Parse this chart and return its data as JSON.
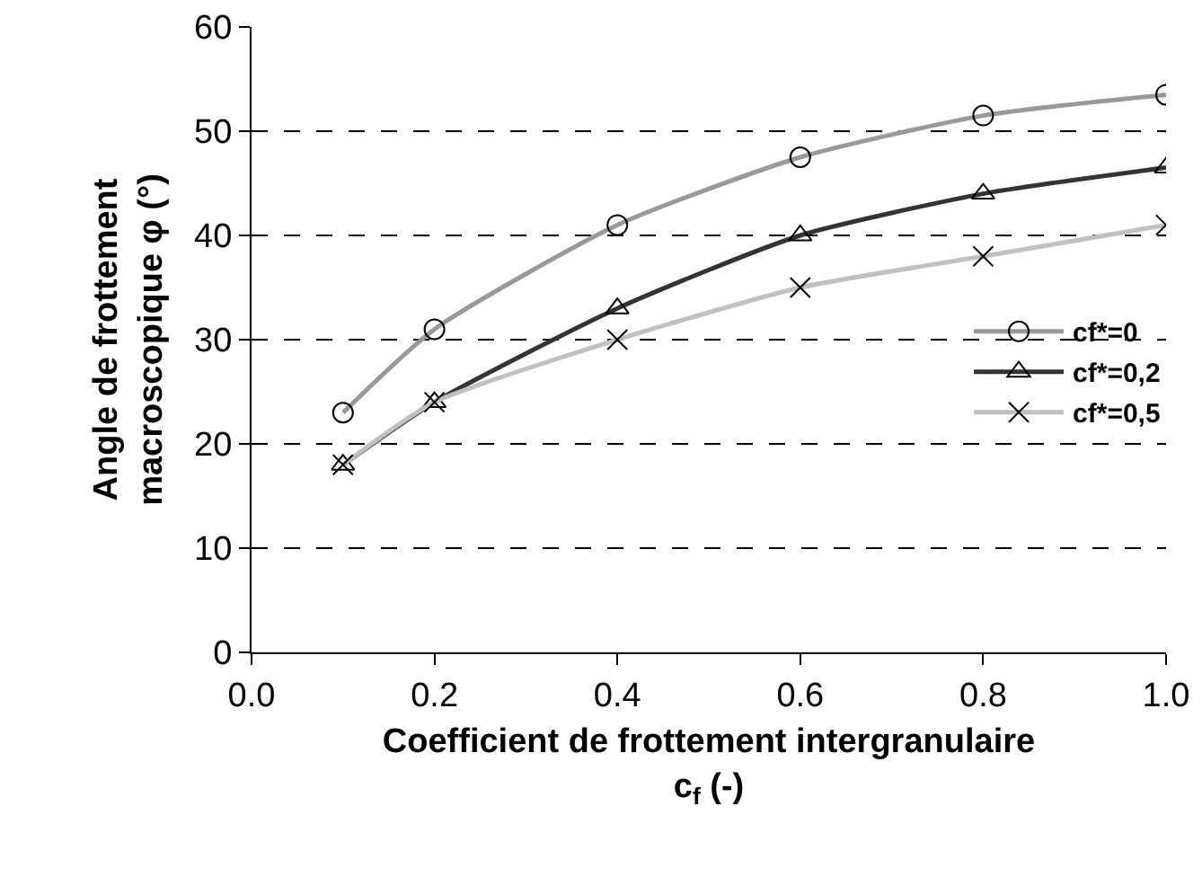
{
  "chart_data": {
    "type": "line",
    "xlabel": "Coefficient de frottement intergranulaire\nc$_{f}$ (-)",
    "ylabel": "Angle de frottement\nmacroscopique φ (°)",
    "x": [
      0.1,
      0.2,
      0.4,
      0.6,
      0.8,
      1.0
    ],
    "series": [
      {
        "name": "cf*=0",
        "color": "#999999",
        "marker": "circle",
        "values": [
          23,
          31,
          41,
          47.5,
          51.5,
          53.5
        ]
      },
      {
        "name": "cf*=0,2",
        "color": "#333333",
        "marker": "triangle",
        "values": [
          18,
          24,
          33,
          40,
          44,
          46.5
        ]
      },
      {
        "name": "cf*=0,5",
        "color": "#c0c0c0",
        "marker": "cross",
        "values": [
          18,
          24,
          30,
          35,
          38,
          41
        ]
      }
    ],
    "xlim": [
      0,
      1
    ],
    "xticks": [
      {
        "value": 0,
        "label": "0.0"
      },
      {
        "value": 0.2,
        "label": "0.2"
      },
      {
        "value": 0.4,
        "label": "0.4"
      },
      {
        "value": 0.6,
        "label": "0.6"
      },
      {
        "value": 0.8,
        "label": "0.8"
      },
      {
        "value": 1,
        "label": "1.0"
      }
    ],
    "ylim": [
      0,
      60
    ],
    "yticks": [
      0,
      10,
      20,
      30,
      40,
      50,
      60
    ],
    "grid": "y",
    "legend": "right",
    "line_style": "solid"
  }
}
